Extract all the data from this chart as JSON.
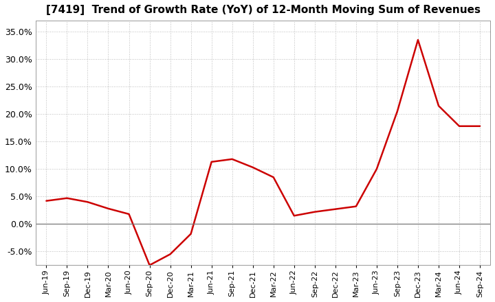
{
  "title": "[7419]  Trend of Growth Rate (YoY) of 12-Month Moving Sum of Revenues",
  "line_color": "#cc0000",
  "background_color": "#ffffff",
  "grid_color": "#bbbbbb",
  "ylim": [
    -0.075,
    0.37
  ],
  "yticks": [
    -0.05,
    0.0,
    0.05,
    0.1,
    0.15,
    0.2,
    0.25,
    0.3,
    0.35
  ],
  "labels": [
    "Jun-19",
    "Sep-19",
    "Dec-19",
    "Mar-20",
    "Jun-20",
    "Sep-20",
    "Dec-20",
    "Mar-21",
    "Jun-21",
    "Sep-21",
    "Dec-21",
    "Mar-22",
    "Jun-22",
    "Sep-22",
    "Dec-22",
    "Mar-23",
    "Jun-23",
    "Sep-23",
    "Dec-23",
    "Mar-24",
    "Jun-24",
    "Sep-24"
  ],
  "values": [
    0.042,
    0.047,
    0.04,
    0.028,
    0.018,
    -0.075,
    -0.055,
    -0.018,
    0.113,
    0.118,
    0.103,
    0.085,
    0.015,
    0.022,
    0.027,
    0.032,
    0.1,
    0.205,
    0.335,
    0.215,
    0.178,
    0.178
  ],
  "title_fontsize": 11,
  "tick_fontsize": 9,
  "xlabel_fontsize": 8,
  "line_width": 1.8
}
